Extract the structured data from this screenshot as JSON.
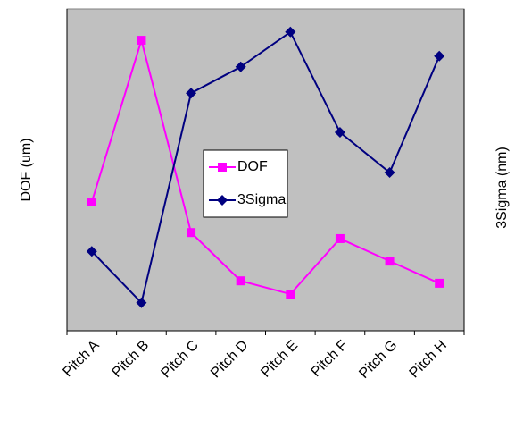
{
  "chart_data": {
    "type": "line",
    "categories": [
      "Pitch A",
      "Pitch B",
      "Pitch C",
      "Pitch D",
      "Pitch E",
      "Pitch F",
      "Pitch G",
      "Pitch H"
    ],
    "y_label": "DOF (um)",
    "y2_label": "3Sigma (nm)",
    "ylim": [
      0,
      8
    ],
    "y2lim": [
      0,
      6
    ],
    "series": [
      {
        "name": "DOF",
        "color": "#ff00ff",
        "marker": "square",
        "values": [
          3.2,
          7.22,
          2.44,
          1.24,
          0.91,
          2.29,
          1.73,
          1.18
        ]
      },
      {
        "name": "3Sigma",
        "color": "#000080",
        "marker": "diamond",
        "axis": "y2",
        "values": [
          1.48,
          0.52,
          4.43,
          4.92,
          5.57,
          3.7,
          2.95,
          5.12
        ]
      }
    ]
  }
}
